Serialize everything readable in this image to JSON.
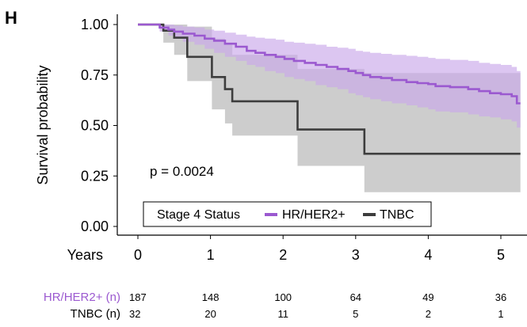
{
  "chart_data": {
    "type": "line",
    "panel_label": "H",
    "ylabel": "Survival probability",
    "xlabel": "Years",
    "xlim": [
      0,
      5.27
    ],
    "ylim": [
      0,
      1
    ],
    "x_ticks": [
      "0",
      "1",
      "2",
      "3",
      "4",
      "5"
    ],
    "y_ticks": [
      "0.00",
      "0.25",
      "0.50",
      "0.75",
      "1.00"
    ],
    "annotation": "p = 0.0024",
    "legend": {
      "title": "Stage 4 Status",
      "position": "bottom-center",
      "entries": [
        "HR/HER2+",
        "TNBC"
      ]
    },
    "series": [
      {
        "name": "HR/HER2+",
        "color": "#9b59d0",
        "ci_color": "#c9a8ea",
        "step_x": [
          0,
          0.3,
          0.42,
          0.5,
          0.62,
          0.78,
          0.92,
          1.05,
          1.2,
          1.35,
          1.5,
          1.62,
          1.75,
          1.9,
          2.02,
          2.15,
          2.3,
          2.45,
          2.6,
          2.75,
          2.9,
          3.0,
          3.1,
          3.2,
          3.35,
          3.5,
          3.7,
          3.85,
          4.0,
          4.1,
          4.3,
          4.55,
          4.7,
          4.85,
          5.0,
          5.15,
          5.22
        ],
        "step_y": [
          1.0,
          0.985,
          0.975,
          0.965,
          0.955,
          0.945,
          0.93,
          0.92,
          0.905,
          0.89,
          0.87,
          0.86,
          0.85,
          0.84,
          0.83,
          0.82,
          0.81,
          0.8,
          0.79,
          0.78,
          0.77,
          0.76,
          0.75,
          0.74,
          0.735,
          0.725,
          0.715,
          0.71,
          0.705,
          0.695,
          0.69,
          0.68,
          0.67,
          0.66,
          0.655,
          0.645,
          0.61
        ],
        "ci_lower": [
          1.0,
          0.965,
          0.945,
          0.93,
          0.915,
          0.9,
          0.88,
          0.86,
          0.84,
          0.82,
          0.8,
          0.79,
          0.77,
          0.76,
          0.74,
          0.73,
          0.72,
          0.7,
          0.69,
          0.68,
          0.66,
          0.65,
          0.64,
          0.63,
          0.62,
          0.61,
          0.6,
          0.59,
          0.58,
          0.57,
          0.565,
          0.555,
          0.545,
          0.54,
          0.53,
          0.52,
          0.49
        ],
        "ci_upper": [
          1.0,
          1.0,
          1.0,
          0.995,
          0.99,
          0.985,
          0.975,
          0.97,
          0.96,
          0.95,
          0.94,
          0.935,
          0.93,
          0.925,
          0.915,
          0.91,
          0.905,
          0.9,
          0.89,
          0.885,
          0.88,
          0.87,
          0.865,
          0.86,
          0.855,
          0.85,
          0.845,
          0.84,
          0.835,
          0.83,
          0.825,
          0.82,
          0.81,
          0.805,
          0.8,
          0.79,
          0.77
        ]
      },
      {
        "name": "TNBC",
        "color": "#3d3d3d",
        "ci_color": "#c4c4c4",
        "step_x": [
          0,
          0.35,
          0.5,
          0.68,
          1.02,
          1.2,
          1.3,
          2.2,
          2.25,
          3.12,
          5.27
        ],
        "step_y": [
          1.0,
          0.97,
          0.935,
          0.84,
          0.74,
          0.68,
          0.62,
          0.48,
          0.48,
          0.36,
          0.36
        ],
        "ci_lower": [
          1.0,
          0.91,
          0.85,
          0.72,
          0.58,
          0.51,
          0.45,
          0.3,
          0.3,
          0.17,
          0.17
        ],
        "ci_upper": [
          1.0,
          1.0,
          1.0,
          0.99,
          0.93,
          0.9,
          0.85,
          0.78,
          0.78,
          0.76,
          0.76
        ]
      }
    ],
    "risk_table": {
      "time_points": [
        0,
        1,
        2,
        3,
        4,
        5
      ],
      "rows": [
        {
          "label": "HR/HER2+ (n)",
          "color": "#9b59d0",
          "counts": [
            "187",
            "148",
            "100",
            "64",
            "49",
            "36"
          ]
        },
        {
          "label": "TNBC (n)",
          "color": "#000000",
          "counts": [
            "32",
            "20",
            "11",
            "5",
            "2",
            "1"
          ]
        }
      ]
    }
  }
}
